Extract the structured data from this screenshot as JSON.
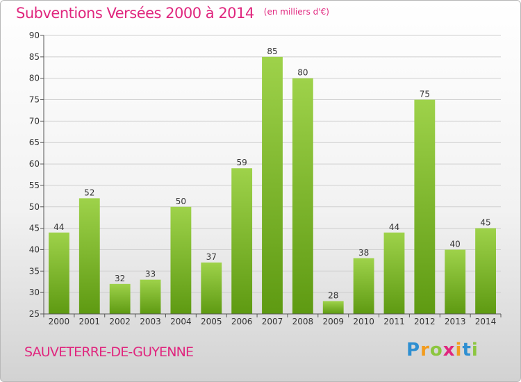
{
  "chart_data": {
    "type": "bar",
    "title": "Subventions Versées 2000 à 2014",
    "subtitle": "(en milliers d'€)",
    "categories": [
      "2000",
      "2001",
      "2002",
      "2003",
      "2004",
      "2005",
      "2006",
      "2007",
      "2008",
      "2009",
      "2010",
      "2011",
      "2012",
      "2013",
      "2014"
    ],
    "values": [
      44,
      52,
      32,
      33,
      50,
      37,
      59,
      85,
      80,
      28,
      38,
      44,
      75,
      40,
      45
    ],
    "ylim": [
      25,
      90
    ],
    "yticks": [
      25,
      30,
      35,
      40,
      45,
      50,
      55,
      60,
      65,
      70,
      75,
      80,
      85,
      90
    ],
    "grid": true,
    "data_labels": true,
    "colors": {
      "bar_top": "#9ed24a",
      "bar_bottom": "#5e9a12",
      "title": "#e0267e",
      "grid": "#cfcfcf",
      "axis": "#555555"
    }
  },
  "footer": {
    "commune": "SAUVETERRE-DE-GUYENNE",
    "logo_letters": [
      {
        "char": "P",
        "color": "#2e8fd1"
      },
      {
        "char": "r",
        "color": "#f39c1d"
      },
      {
        "char": "o",
        "color": "#8cc63f"
      },
      {
        "char": "x",
        "color": "#e0267e"
      },
      {
        "char": "i",
        "color": "#f39c1d"
      },
      {
        "char": "t",
        "color": "#2e8fd1"
      },
      {
        "char": "i",
        "color": "#8cc63f"
      }
    ]
  }
}
